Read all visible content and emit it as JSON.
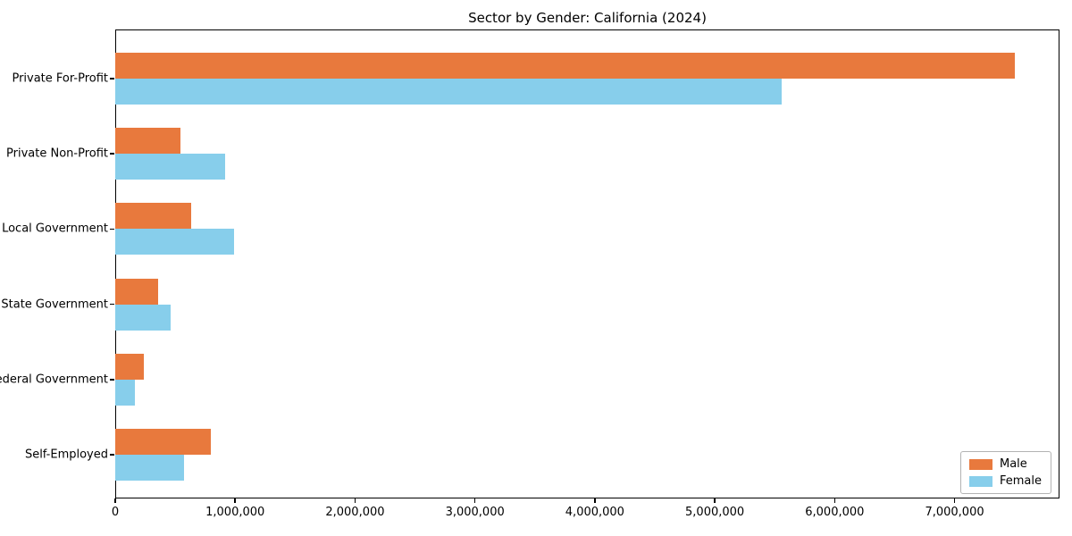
{
  "chart_data": {
    "type": "bar",
    "orientation": "horizontal",
    "title": "Sector by Gender: California (2024)",
    "categories": [
      "Private For-Profit",
      "Private Non-Profit",
      "Local Government",
      "State Government",
      "Federal Government",
      "Self-Employed"
    ],
    "series": [
      {
        "name": "Male",
        "color": "#e8793d",
        "values": [
          7500000,
          545000,
          630000,
          360000,
          240000,
          800000
        ]
      },
      {
        "name": "Female",
        "color": "#87ceeb",
        "values": [
          5560000,
          920000,
          990000,
          460000,
          165000,
          575000
        ]
      }
    ],
    "xlabel": "",
    "ylabel": "",
    "xlim": [
      0,
      7875000
    ],
    "x_ticks": [
      {
        "value": 0,
        "label": "0"
      },
      {
        "value": 1000000,
        "label": "1,000,000"
      },
      {
        "value": 2000000,
        "label": "2,000,000"
      },
      {
        "value": 3000000,
        "label": "3,000,000"
      },
      {
        "value": 4000000,
        "label": "4,000,000"
      },
      {
        "value": 5000000,
        "label": "5,000,000"
      },
      {
        "value": 6000000,
        "label": "6,000,000"
      },
      {
        "value": 7000000,
        "label": "7,000,000"
      }
    ],
    "grid": false,
    "legend": {
      "position": "lower right",
      "entries": [
        "Male",
        "Female"
      ]
    }
  },
  "colors": {
    "background": "#ffffff",
    "spine": "#000000",
    "text": "#000000",
    "legend_border": "#b3b3b3"
  }
}
